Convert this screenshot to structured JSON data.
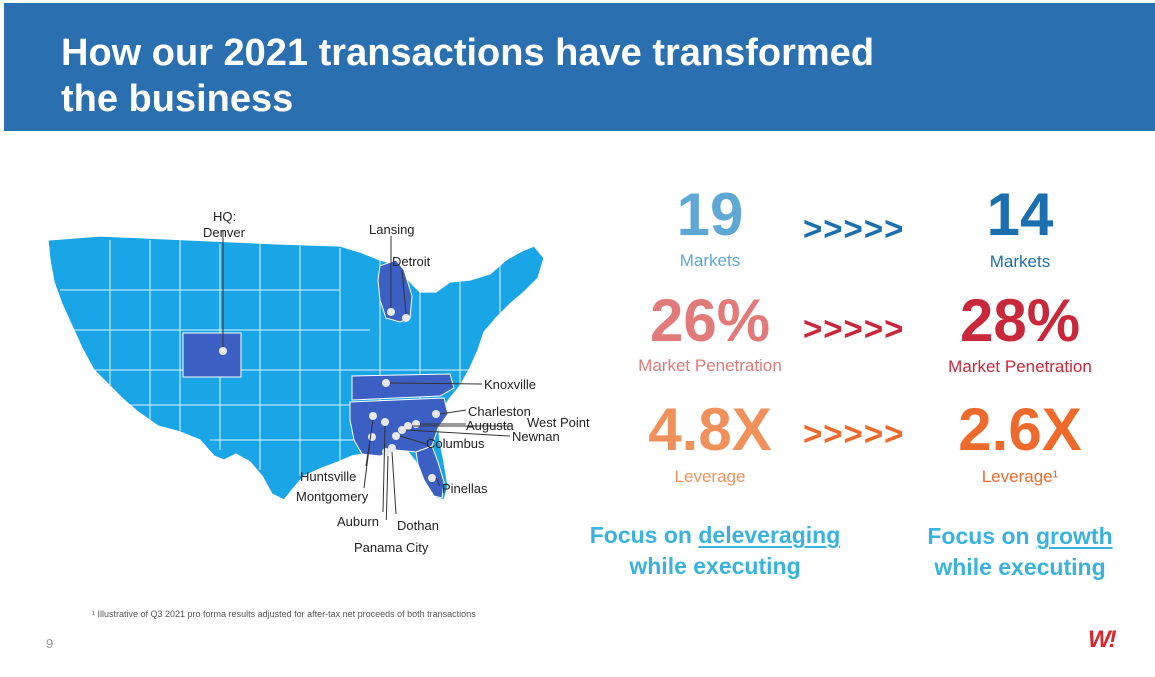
{
  "title_line1": "How our 2021 transactions have transformed",
  "title_line2": "the business",
  "map": {
    "labels": {
      "hq": "HQ:",
      "denver": "Denver",
      "lansing": "Lansing",
      "detroit": "Detroit",
      "knoxville": "Knoxville",
      "charleston": "Charleston",
      "augusta": "Augusta",
      "west_point": "West Point",
      "newnan": "Newnan",
      "columbus": "Columbus",
      "huntsville": "Huntsville",
      "montgomery": "Montgomery",
      "pinellas": "Pinellas",
      "auburn": "Auburn",
      "dothan": "Dothan",
      "panama_city": "Panama City"
    },
    "colors": {
      "land": "#1aa6e6",
      "highlight": "#3c5fc4",
      "border": "#ffffff"
    }
  },
  "metrics": [
    {
      "before_value": "19",
      "before_label": "Markets",
      "arrow": ">>>>>",
      "after_value": "14",
      "after_label": "Markets",
      "before_color": "#5fa8d6",
      "arrow_color": "#1c6fae",
      "after_color": "#1c6fae"
    },
    {
      "before_value": "26%",
      "before_label": "Market Penetration",
      "arrow": ">>>>>",
      "after_value": "28%",
      "after_label": "Market Penetration",
      "before_color": "#e27a7a",
      "arrow_color": "#c8283a",
      "after_color": "#c8283a"
    },
    {
      "before_value": "4.8X",
      "before_label": "Leverage",
      "arrow": ">>>>>",
      "after_value": "2.6X",
      "after_label": "Leverage¹",
      "before_color": "#f0915c",
      "arrow_color": "#ee6a2c",
      "after_color": "#ee6a2c"
    }
  ],
  "focus_left": {
    "prefix": "Focus on ",
    "emph": "deleveraging",
    "line2": "while executing"
  },
  "focus_right": {
    "prefix": "Focus on ",
    "emph": "growth",
    "line2": "while executing"
  },
  "footnote": "¹ Illustrative of Q3 2021 pro forma results adjusted for after-tax net proceeds of both transactions",
  "page_number": "9",
  "logo_text": "W!",
  "icons": {
    "logo": "wow-logo-icon",
    "map": "us-map-icon"
  }
}
